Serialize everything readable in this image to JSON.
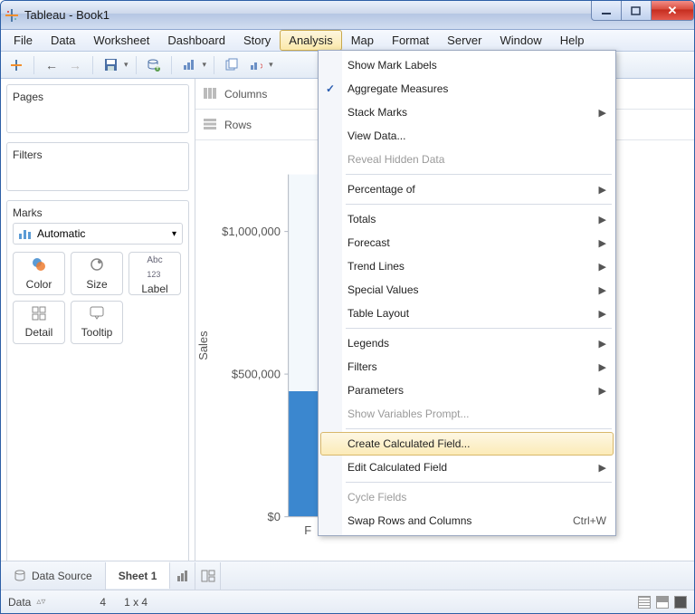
{
  "window": {
    "title": "Tableau - Book1"
  },
  "menubar": [
    "File",
    "Data",
    "Worksheet",
    "Dashboard",
    "Story",
    "Analysis",
    "Map",
    "Format",
    "Server",
    "Window",
    "Help"
  ],
  "menubar_open_index": 5,
  "shelves": {
    "columns": "Columns",
    "rows": "Rows"
  },
  "panels": {
    "pages": "Pages",
    "filters": "Filters",
    "marks": "Marks"
  },
  "marks": {
    "mode": "Automatic",
    "buttons": [
      {
        "label": "Color",
        "icon": "color"
      },
      {
        "label": "Size",
        "icon": "size"
      },
      {
        "label": "Label",
        "icon": "label"
      },
      {
        "label": "Detail",
        "icon": "detail"
      },
      {
        "label": "Tooltip",
        "icon": "tooltip"
      }
    ]
  },
  "chart": {
    "type": "bar",
    "ylabel": "Sales",
    "xlabel": "F",
    "ticks": [
      {
        "label": "$1,000,000",
        "value": 1000000
      },
      {
        "label": "$500,000",
        "value": 500000
      },
      {
        "label": "$0",
        "value": 0
      }
    ],
    "ylim": [
      0,
      1200000
    ],
    "bar_value": 440000,
    "bar_color": "#3b87cf",
    "axis_color": "#b6bcc6",
    "text_color": "#555555",
    "background": "#ffffff",
    "font_size": 12
  },
  "tabs": {
    "data_source": "Data Source",
    "sheet": "Sheet 1"
  },
  "status": {
    "left_label": "Data",
    "marks_count": "4",
    "dims": "1 x 4"
  },
  "dropdown": {
    "groups": [
      [
        {
          "label": "Show Mark Labels"
        },
        {
          "label": "Aggregate Measures",
          "checked": true
        },
        {
          "label": "Stack Marks",
          "submenu": true
        },
        {
          "label": "View Data..."
        },
        {
          "label": "Reveal Hidden Data",
          "disabled": true
        }
      ],
      [
        {
          "label": "Percentage of",
          "submenu": true
        }
      ],
      [
        {
          "label": "Totals",
          "submenu": true
        },
        {
          "label": "Forecast",
          "submenu": true
        },
        {
          "label": "Trend Lines",
          "submenu": true
        },
        {
          "label": "Special Values",
          "submenu": true
        },
        {
          "label": "Table Layout",
          "submenu": true
        }
      ],
      [
        {
          "label": "Legends",
          "submenu": true
        },
        {
          "label": "Filters",
          "submenu": true
        },
        {
          "label": "Parameters",
          "submenu": true
        },
        {
          "label": "Show Variables Prompt...",
          "disabled": true
        }
      ],
      [
        {
          "label": "Create Calculated Field...",
          "hover": true
        },
        {
          "label": "Edit Calculated Field",
          "submenu": true
        }
      ],
      [
        {
          "label": "Cycle Fields",
          "disabled": true
        },
        {
          "label": "Swap Rows and Columns",
          "shortcut": "Ctrl+W"
        }
      ]
    ]
  }
}
